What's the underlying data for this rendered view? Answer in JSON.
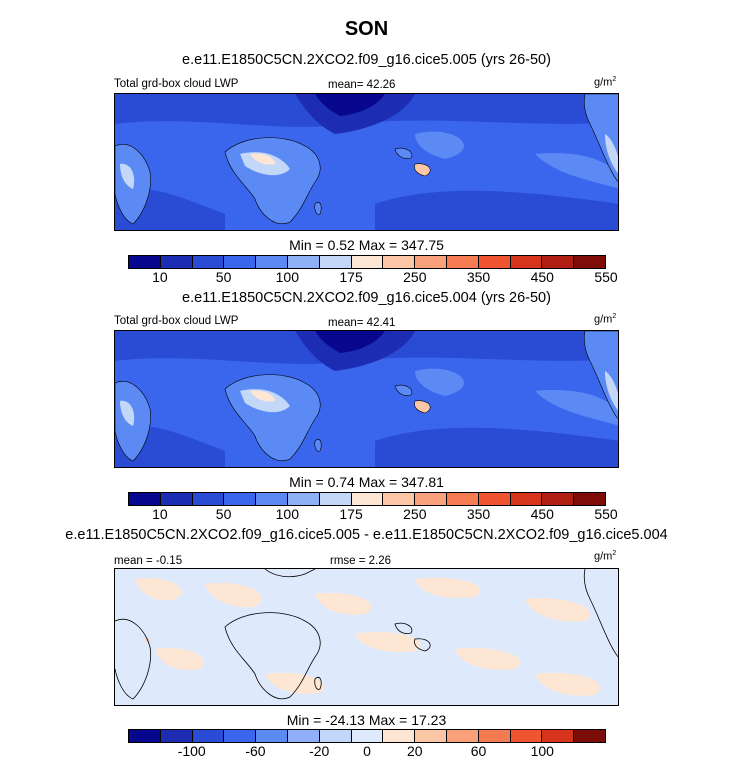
{
  "title": "SON",
  "case1": "e.e11.E1850C5CN.2XCO2.f09_g16.cice5.005 (yrs 26-50)",
  "case2": "e.e11.E1850C5CN.2XCO2.f09_g16.cice5.004 (yrs 26-50)",
  "case_diff": "e.e11.E1850C5CN.2XCO2.f09_g16.cice5.005 - e.e11.E1850C5CN.2XCO2.f09_g16.cice5.004",
  "panels": [
    {
      "left_label": "Total grd-box cloud LWP",
      "center_label": "mean=  42.26",
      "units": "g/m",
      "units_sup": "2",
      "minmax": "Min =   0.52 Max = 347.75",
      "tick_labels": [
        "10",
        "50",
        "100",
        "175",
        "250",
        "350",
        "450",
        "550"
      ],
      "colors": [
        "#08088e",
        "#1c2db4",
        "#2a4bd4",
        "#3a66ee",
        "#5b8af5",
        "#8fb0f6",
        "#c3d7f8",
        "#fde6d3",
        "#fcc7a7",
        "#f9a17b",
        "#f57b52",
        "#ef5530",
        "#d7351b",
        "#b01d12",
        "#7e0d0a"
      ]
    },
    {
      "left_label": "Total grd-box cloud LWP",
      "center_label": "mean=  42.41",
      "units": "g/m",
      "units_sup": "2",
      "minmax": "Min =   0.74 Max = 347.81",
      "tick_labels": [
        "10",
        "50",
        "100",
        "175",
        "250",
        "350",
        "450",
        "550"
      ],
      "colors": [
        "#08088e",
        "#1c2db4",
        "#2a4bd4",
        "#3a66ee",
        "#5b8af5",
        "#8fb0f6",
        "#c3d7f8",
        "#fde6d3",
        "#fcc7a7",
        "#f9a17b",
        "#f57b52",
        "#ef5530",
        "#d7351b",
        "#b01d12",
        "#7e0d0a"
      ]
    },
    {
      "left_label": "mean = -0.15",
      "center_label": "rmse =  2.26",
      "units": "g/m",
      "units_sup": "2",
      "minmax": "Min = -24.13 Max =  17.23",
      "tick_labels": [
        "-100",
        "-60",
        "-20",
        "0",
        "20",
        "60",
        "100"
      ],
      "colors": [
        "#08088e",
        "#1c2db4",
        "#2a4bd4",
        "#3a66ee",
        "#5b8af5",
        "#8fb0f6",
        "#c3d7f8",
        "#deeafb",
        "#fde6d3",
        "#fcc7a7",
        "#f9a17b",
        "#f57b52",
        "#ef5530",
        "#d7351b",
        "#7e0d0a"
      ]
    }
  ]
}
